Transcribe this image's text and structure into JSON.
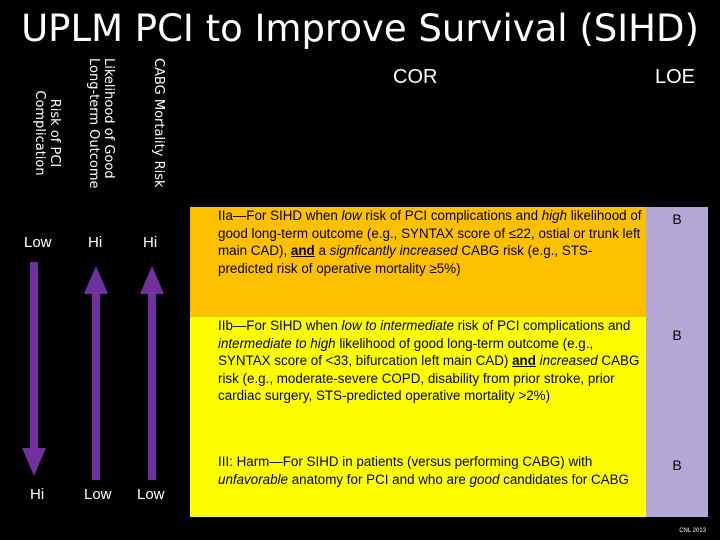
{
  "title": "UPLM PCI to Improve Survival (SIHD)",
  "headers": {
    "risk_pci_line1": "Risk of PCI",
    "risk_pci_line2": "Complication",
    "likelihood_line1": "Likelihood of Good",
    "likelihood_line2": "Long-term Outcome",
    "cabg": "CABG Mortality Risk",
    "cor": "COR",
    "loe": "LOE"
  },
  "levels": {
    "risk_top": "Low",
    "risk_bottom": "Hi",
    "likelihood_top": "Hi",
    "likelihood_bottom": "Low",
    "cabg_top": "Hi",
    "cabg_bottom": "Low"
  },
  "colors": {
    "arrow": "#7030a0",
    "cor_orange": "#ffc000",
    "cor_yellow": "#ffff00",
    "loe_purple": "#b4a7d6"
  },
  "rows": [
    {
      "loe": "B",
      "segments": [
        {
          "t": "IIa",
          "s": "n"
        },
        {
          "t": "—For SIHD when ",
          "s": "n"
        },
        {
          "t": "low",
          "s": "i"
        },
        {
          "t": " risk of PCI complications and ",
          "s": "n"
        },
        {
          "t": "high",
          "s": "i"
        },
        {
          "t": " likelihood of good long-term outcome (e.g., SYNTAX score of ≤22, ostial or trunk left main CAD), ",
          "s": "n"
        },
        {
          "t": "and",
          "s": "bu"
        },
        {
          "t": " a ",
          "s": "n"
        },
        {
          "t": "signficantly increased",
          "s": "i"
        },
        {
          "t": " CABG risk (e.g., STS-predicted risk of operative mortality ≥5%)",
          "s": "n"
        }
      ]
    },
    {
      "loe": "B",
      "segments": [
        {
          "t": "IIb",
          "s": "n"
        },
        {
          "t": "—For SIHD when ",
          "s": "n"
        },
        {
          "t": "low to intermediate",
          "s": "i"
        },
        {
          "t": " risk of PCI complications and ",
          "s": "n"
        },
        {
          "t": "intermediate to high",
          "s": "i"
        },
        {
          "t": " likelihood of good long-term outcome (e.g., SYNTAX score of <33, bifurcation left main CAD) ",
          "s": "n"
        },
        {
          "t": "and",
          "s": "bu"
        },
        {
          "t": " ",
          "s": "n"
        },
        {
          "t": "increased",
          "s": "i"
        },
        {
          "t": " CABG risk (e.g., moderate-severe COPD, disability from prior stroke, prior cardiac surgery, STS-predicted operative mortality >2%)",
          "s": "n"
        }
      ]
    },
    {
      "loe": "B",
      "segments": [
        {
          "t": "III: Harm",
          "s": "n"
        },
        {
          "t": "—For SIHD in patients (versus performing CABG) with ",
          "s": "n"
        },
        {
          "t": "unfavorable",
          "s": "i"
        },
        {
          "t": " anatomy for PCI and who are ",
          "s": "n"
        },
        {
          "t": "good",
          "s": "i"
        },
        {
          "t": " candidates for CABG",
          "s": "n"
        }
      ]
    }
  ],
  "footer": "CNL 2013"
}
